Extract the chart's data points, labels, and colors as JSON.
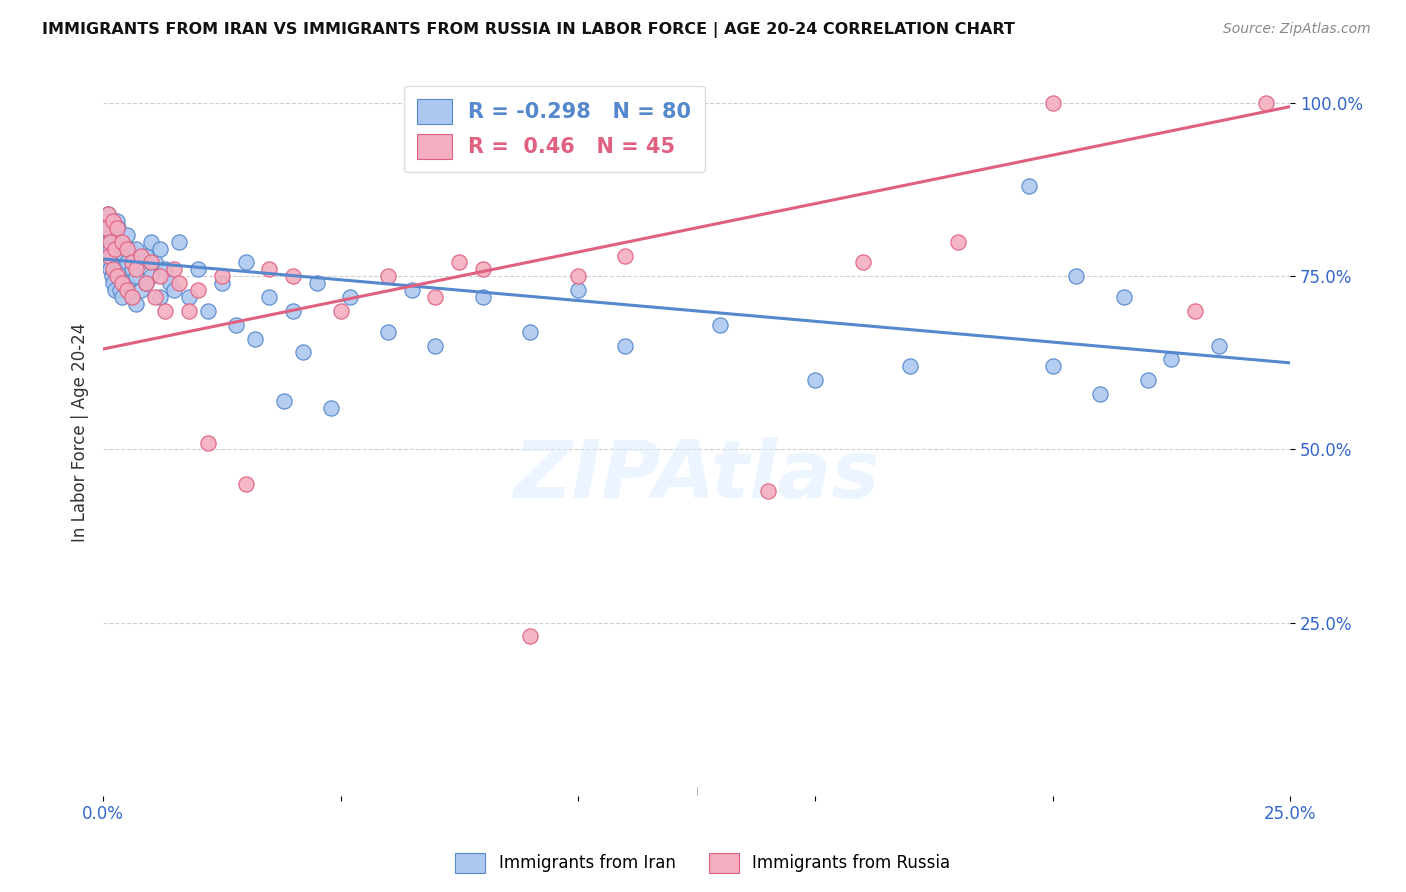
{
  "title": "IMMIGRANTS FROM IRAN VS IMMIGRANTS FROM RUSSIA IN LABOR FORCE | AGE 20-24 CORRELATION CHART",
  "source": "Source: ZipAtlas.com",
  "ylabel": "In Labor Force | Age 20-24",
  "xmin": 0.0,
  "xmax": 0.25,
  "ymin": 0.0,
  "ymax": 1.05,
  "iran_color": "#adc8ef",
  "russia_color": "#f4aec0",
  "iran_R": -0.298,
  "iran_N": 80,
  "russia_R": 0.46,
  "russia_N": 45,
  "iran_trend_color": "#5588cc",
  "russia_trend_color": "#e06080",
  "watermark": "ZIPAtlas",
  "iran_x": [
    0.0005,
    0.0008,
    0.001,
    0.001,
    0.0012,
    0.0013,
    0.0015,
    0.0015,
    0.0017,
    0.0018,
    0.002,
    0.002,
    0.002,
    0.0022,
    0.0025,
    0.0025,
    0.003,
    0.003,
    0.003,
    0.0032,
    0.0035,
    0.0035,
    0.004,
    0.004,
    0.004,
    0.0045,
    0.005,
    0.005,
    0.005,
    0.0055,
    0.006,
    0.006,
    0.007,
    0.007,
    0.007,
    0.008,
    0.008,
    0.009,
    0.009,
    0.01,
    0.01,
    0.011,
    0.012,
    0.012,
    0.013,
    0.014,
    0.015,
    0.016,
    0.018,
    0.02,
    0.022,
    0.025,
    0.028,
    0.03,
    0.032,
    0.035,
    0.038,
    0.04,
    0.042,
    0.045,
    0.048,
    0.052,
    0.06,
    0.065,
    0.07,
    0.08,
    0.09,
    0.1,
    0.11,
    0.13,
    0.15,
    0.17,
    0.195,
    0.2,
    0.205,
    0.21,
    0.215,
    0.22,
    0.225,
    0.235
  ],
  "iran_y": [
    0.83,
    0.78,
    0.84,
    0.8,
    0.77,
    0.82,
    0.79,
    0.76,
    0.81,
    0.75,
    0.82,
    0.78,
    0.74,
    0.8,
    0.77,
    0.73,
    0.83,
    0.79,
    0.76,
    0.82,
    0.77,
    0.73,
    0.8,
    0.76,
    0.72,
    0.78,
    0.81,
    0.77,
    0.74,
    0.79,
    0.76,
    0.72,
    0.79,
    0.75,
    0.71,
    0.77,
    0.73,
    0.78,
    0.74,
    0.8,
    0.75,
    0.77,
    0.79,
    0.72,
    0.76,
    0.74,
    0.73,
    0.8,
    0.72,
    0.76,
    0.7,
    0.74,
    0.68,
    0.77,
    0.66,
    0.72,
    0.57,
    0.7,
    0.64,
    0.74,
    0.56,
    0.72,
    0.67,
    0.73,
    0.65,
    0.72,
    0.67,
    0.73,
    0.65,
    0.68,
    0.6,
    0.62,
    0.88,
    0.62,
    0.75,
    0.58,
    0.72,
    0.6,
    0.63,
    0.65
  ],
  "russia_x": [
    0.0005,
    0.001,
    0.0012,
    0.0015,
    0.002,
    0.002,
    0.0025,
    0.003,
    0.003,
    0.004,
    0.004,
    0.005,
    0.005,
    0.006,
    0.006,
    0.007,
    0.008,
    0.009,
    0.01,
    0.011,
    0.012,
    0.013,
    0.015,
    0.016,
    0.018,
    0.02,
    0.022,
    0.025,
    0.03,
    0.035,
    0.04,
    0.05,
    0.06,
    0.07,
    0.075,
    0.08,
    0.09,
    0.1,
    0.11,
    0.14,
    0.16,
    0.18,
    0.2,
    0.23,
    0.245
  ],
  "russia_y": [
    0.82,
    0.84,
    0.78,
    0.8,
    0.83,
    0.76,
    0.79,
    0.82,
    0.75,
    0.8,
    0.74,
    0.79,
    0.73,
    0.77,
    0.72,
    0.76,
    0.78,
    0.74,
    0.77,
    0.72,
    0.75,
    0.7,
    0.76,
    0.74,
    0.7,
    0.73,
    0.51,
    0.75,
    0.45,
    0.76,
    0.75,
    0.7,
    0.75,
    0.72,
    0.77,
    0.76,
    0.23,
    0.75,
    0.78,
    0.44,
    0.77,
    0.8,
    1.0,
    0.7,
    1.0
  ]
}
